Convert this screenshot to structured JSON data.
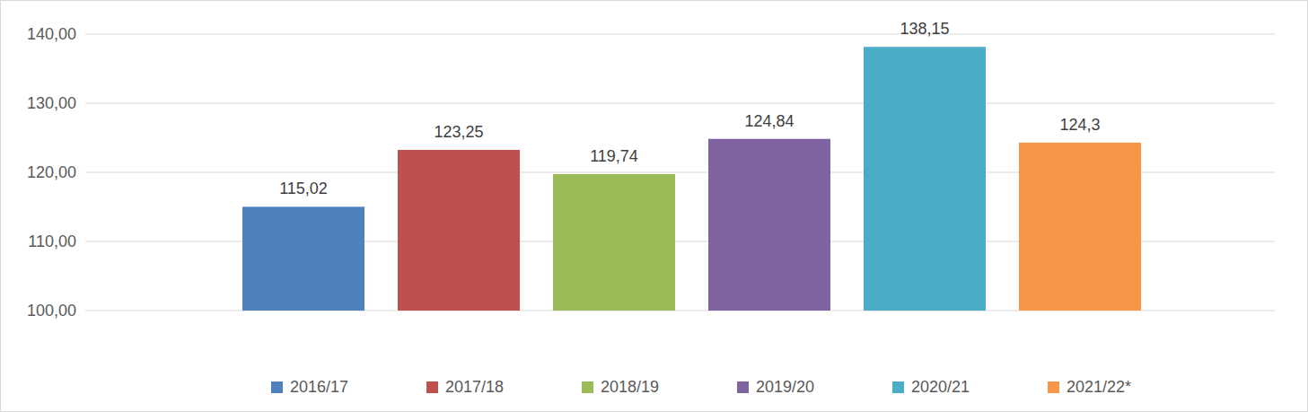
{
  "chart_data": {
    "type": "bar",
    "categories": [
      "2016/17",
      "2017/18",
      "2018/19",
      "2019/20",
      "2020/21",
      "2021/22*"
    ],
    "values": [
      115.02,
      123.25,
      119.74,
      124.84,
      138.15,
      124.3
    ],
    "value_labels": [
      "115,02",
      "123,25",
      "119,74",
      "124,84",
      "138,15",
      "124,3"
    ],
    "colors": [
      "#4f81bd",
      "#c0504d",
      "#9bbb59",
      "#8064a2",
      "#4bacc6",
      "#f79646"
    ],
    "ylim": [
      100,
      140
    ],
    "yticks": [
      {
        "value": 100,
        "label": "100,00"
      },
      {
        "value": 110,
        "label": "110,00"
      },
      {
        "value": 120,
        "label": "120,00"
      },
      {
        "value": 130,
        "label": "130,00"
      },
      {
        "value": 140,
        "label": "140,00"
      }
    ],
    "grid": true,
    "data_labels": true,
    "legend": "bottom"
  }
}
